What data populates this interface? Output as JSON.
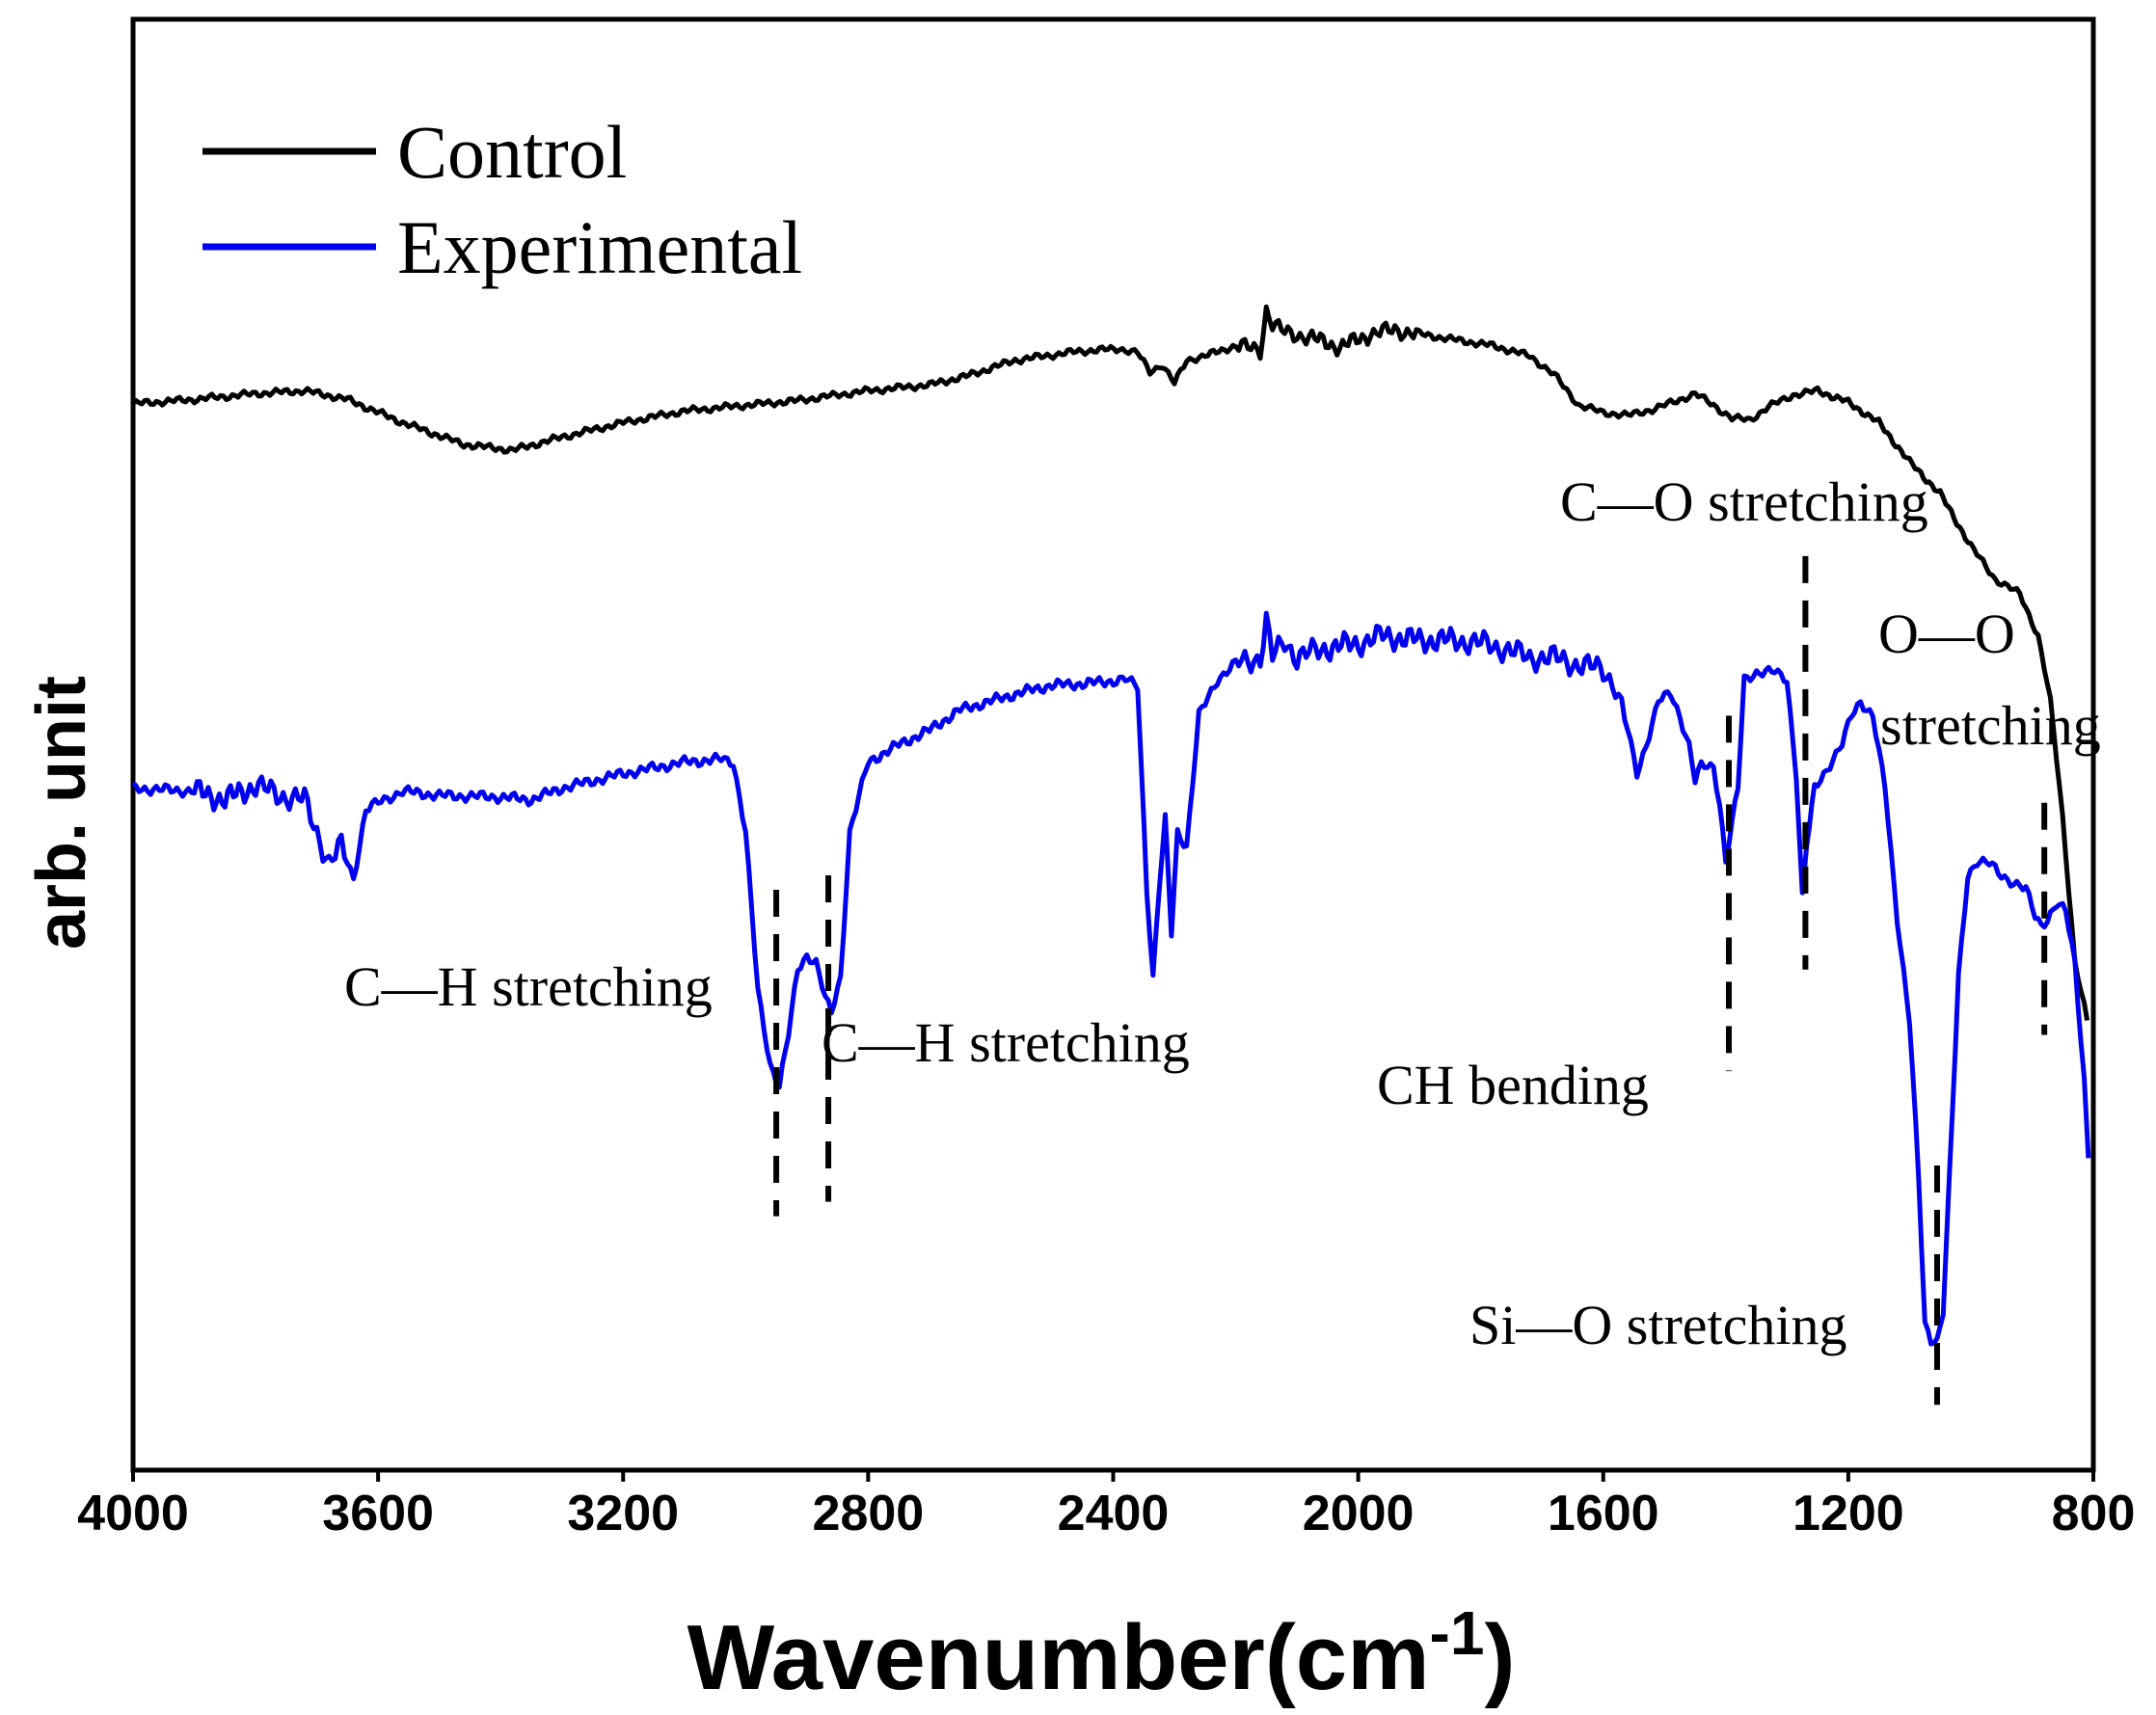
{
  "chart_data": {
    "type": "line",
    "title": "",
    "xlabel": "Wavenumber(cm",
    "xlabel_sup": "-1",
    "xlabel_close": ")",
    "ylabel": "arb. unit",
    "xlim": [
      4000,
      800
    ],
    "x_ticks": [
      4000,
      3600,
      3200,
      2800,
      2400,
      2000,
      1600,
      1200,
      800
    ],
    "x_tick_labels": [
      "4000",
      "3600",
      "3200",
      "2800",
      "2400",
      "2000",
      "1600",
      "1200",
      "800"
    ],
    "ylim": [
      0,
      1
    ],
    "grid": false,
    "legend_position": "top-left",
    "series": [
      {
        "name": "Control",
        "color": "#000000",
        "points": [
          [
            4000,
            0.735
          ],
          [
            3900,
            0.738
          ],
          [
            3800,
            0.742
          ],
          [
            3720,
            0.744
          ],
          [
            3650,
            0.738
          ],
          [
            3560,
            0.722
          ],
          [
            3460,
            0.707
          ],
          [
            3380,
            0.703
          ],
          [
            3300,
            0.712
          ],
          [
            3200,
            0.722
          ],
          [
            3100,
            0.73
          ],
          [
            3000,
            0.734
          ],
          [
            2920,
            0.737
          ],
          [
            2800,
            0.744
          ],
          [
            2700,
            0.748
          ],
          [
            2640,
            0.754
          ],
          [
            2560,
            0.765
          ],
          [
            2460,
            0.771
          ],
          [
            2390,
            0.773
          ],
          [
            2360,
            0.77
          ],
          [
            2340,
            0.757
          ],
          [
            2320,
            0.762
          ],
          [
            2300,
            0.749
          ],
          [
            2280,
            0.765
          ],
          [
            2250,
            0.768
          ],
          [
            2200,
            0.775
          ],
          [
            2160,
            0.772
          ],
          [
            2150,
            0.8
          ],
          [
            2140,
            0.79
          ],
          [
            2120,
            0.784
          ],
          [
            2080,
            0.781
          ],
          [
            2030,
            0.774
          ],
          [
            1980,
            0.783
          ],
          [
            1940,
            0.786
          ],
          [
            1900,
            0.783
          ],
          [
            1840,
            0.779
          ],
          [
            1780,
            0.775
          ],
          [
            1720,
            0.768
          ],
          [
            1680,
            0.755
          ],
          [
            1640,
            0.734
          ],
          [
            1600,
            0.729
          ],
          [
            1560,
            0.727
          ],
          [
            1520,
            0.731
          ],
          [
            1480,
            0.737
          ],
          [
            1450,
            0.742
          ],
          [
            1420,
            0.734
          ],
          [
            1390,
            0.725
          ],
          [
            1360,
            0.724
          ],
          [
            1330,
            0.733
          ],
          [
            1290,
            0.741
          ],
          [
            1250,
            0.744
          ],
          [
            1200,
            0.736
          ],
          [
            1150,
            0.722
          ],
          [
            1100,
            0.695
          ],
          [
            1050,
            0.673
          ],
          [
            1000,
            0.637
          ],
          [
            960,
            0.614
          ],
          [
            920,
            0.604
          ],
          [
            890,
            0.575
          ],
          [
            870,
            0.53
          ],
          [
            850,
            0.45
          ],
          [
            830,
            0.35
          ],
          [
            810,
            0.31
          ]
        ]
      },
      {
        "name": "Experimental",
        "color": "#0000ee",
        "points": [
          [
            4000,
            0.47
          ],
          [
            3900,
            0.468
          ],
          [
            3850,
            0.462
          ],
          [
            3800,
            0.472
          ],
          [
            3760,
            0.465
          ],
          [
            3720,
            0.462
          ],
          [
            3700,
            0.44
          ],
          [
            3680,
            0.418
          ],
          [
            3660,
            0.43
          ],
          [
            3640,
            0.408
          ],
          [
            3620,
            0.455
          ],
          [
            3600,
            0.46
          ],
          [
            3560,
            0.468
          ],
          [
            3500,
            0.465
          ],
          [
            3400,
            0.464
          ],
          [
            3350,
            0.462
          ],
          [
            3300,
            0.47
          ],
          [
            3200,
            0.48
          ],
          [
            3100,
            0.488
          ],
          [
            3040,
            0.49
          ],
          [
            3020,
            0.488
          ],
          [
            3000,
            0.44
          ],
          [
            2980,
            0.33
          ],
          [
            2960,
            0.28
          ],
          [
            2945,
            0.265
          ],
          [
            2930,
            0.3
          ],
          [
            2915,
            0.345
          ],
          [
            2900,
            0.355
          ],
          [
            2885,
            0.35
          ],
          [
            2870,
            0.325
          ],
          [
            2860,
            0.315
          ],
          [
            2845,
            0.34
          ],
          [
            2830,
            0.44
          ],
          [
            2800,
            0.488
          ],
          [
            2750,
            0.5
          ],
          [
            2700,
            0.51
          ],
          [
            2650,
            0.524
          ],
          [
            2600,
            0.53
          ],
          [
            2550,
            0.536
          ],
          [
            2500,
            0.541
          ],
          [
            2450,
            0.542
          ],
          [
            2400,
            0.544
          ],
          [
            2380,
            0.545
          ],
          [
            2360,
            0.54
          ],
          [
            2345,
            0.4
          ],
          [
            2335,
            0.34
          ],
          [
            2325,
            0.4
          ],
          [
            2315,
            0.448
          ],
          [
            2305,
            0.37
          ],
          [
            2295,
            0.44
          ],
          [
            2280,
            0.43
          ],
          [
            2260,
            0.52
          ],
          [
            2230,
            0.545
          ],
          [
            2200,
            0.556
          ],
          [
            2160,
            0.56
          ],
          [
            2150,
            0.585
          ],
          [
            2140,
            0.56
          ],
          [
            2120,
            0.572
          ],
          [
            2100,
            0.56
          ],
          [
            2060,
            0.566
          ],
          [
            2000,
            0.57
          ],
          [
            1960,
            0.575
          ],
          [
            1900,
            0.572
          ],
          [
            1840,
            0.572
          ],
          [
            1800,
            0.57
          ],
          [
            1760,
            0.566
          ],
          [
            1720,
            0.56
          ],
          [
            1680,
            0.56
          ],
          [
            1640,
            0.555
          ],
          [
            1600,
            0.552
          ],
          [
            1580,
            0.54
          ],
          [
            1560,
            0.51
          ],
          [
            1545,
            0.48
          ],
          [
            1530,
            0.5
          ],
          [
            1510,
            0.53
          ],
          [
            1490,
            0.535
          ],
          [
            1475,
            0.52
          ],
          [
            1460,
            0.5
          ],
          [
            1450,
            0.475
          ],
          [
            1440,
            0.485
          ],
          [
            1420,
            0.485
          ],
          [
            1410,
            0.46
          ],
          [
            1400,
            0.42
          ],
          [
            1390,
            0.445
          ],
          [
            1380,
            0.47
          ],
          [
            1370,
            0.545
          ],
          [
            1350,
            0.55
          ],
          [
            1320,
            0.55
          ],
          [
            1300,
            0.545
          ],
          [
            1285,
            0.48
          ],
          [
            1275,
            0.395
          ],
          [
            1268,
            0.43
          ],
          [
            1255,
            0.47
          ],
          [
            1240,
            0.48
          ],
          [
            1225,
            0.49
          ],
          [
            1210,
            0.5
          ],
          [
            1195,
            0.52
          ],
          [
            1180,
            0.53
          ],
          [
            1160,
            0.52
          ],
          [
            1140,
            0.47
          ],
          [
            1120,
            0.38
          ],
          [
            1100,
            0.31
          ],
          [
            1085,
            0.2
          ],
          [
            1075,
            0.1
          ],
          [
            1065,
            0.09
          ],
          [
            1055,
            0.09
          ],
          [
            1045,
            0.11
          ],
          [
            1035,
            0.2
          ],
          [
            1020,
            0.34
          ],
          [
            1005,
            0.41
          ],
          [
            990,
            0.42
          ],
          [
            970,
            0.418
          ],
          [
            950,
            0.41
          ],
          [
            930,
            0.405
          ],
          [
            910,
            0.4
          ],
          [
            895,
            0.382
          ],
          [
            885,
            0.376
          ],
          [
            875,
            0.38
          ],
          [
            860,
            0.39
          ],
          [
            845,
            0.385
          ],
          [
            830,
            0.35
          ],
          [
            815,
            0.27
          ],
          [
            808,
            0.215
          ]
        ]
      }
    ],
    "annotations": [
      {
        "text": "C—H stretching",
        "x": 2950,
        "line_y": [
          0.175,
          0.4
        ]
      },
      {
        "text": "C—H stretching",
        "x": 2865,
        "line_y": [
          0.185,
          0.41
        ]
      },
      {
        "text": "CH bending",
        "x": 1395,
        "line_y": [
          0.275,
          0.52
        ]
      },
      {
        "text": "C—O stretching",
        "x": 1270,
        "line_y": [
          0.345,
          0.63
        ]
      },
      {
        "text": "Si—O stretching",
        "x": 1055,
        "line_y": [
          0.045,
          0.21
        ]
      },
      {
        "text": "O—O",
        "x": 880
      },
      {
        "text": "stretching",
        "x": 880,
        "line_y": [
          0.3,
          0.46
        ]
      }
    ]
  }
}
